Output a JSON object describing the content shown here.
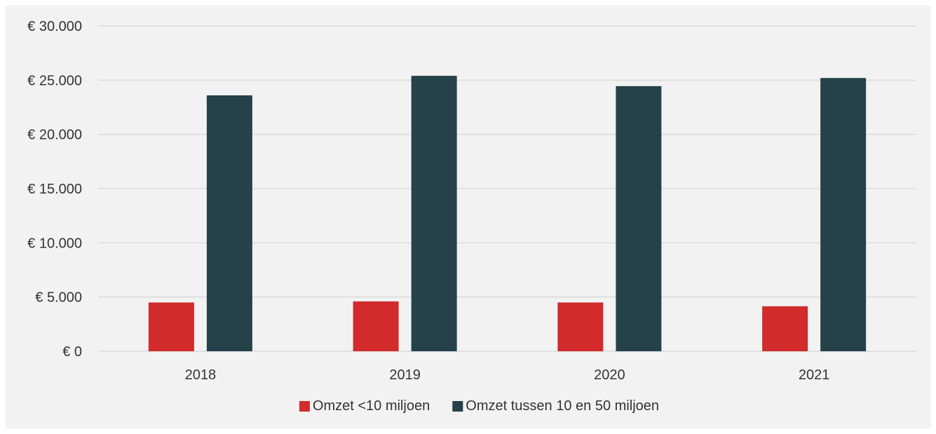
{
  "chart_data": {
    "type": "bar",
    "title": "",
    "xlabel": "",
    "ylabel": "",
    "categories": [
      "2018",
      "2019",
      "2020",
      "2021"
    ],
    "series": [
      {
        "name": "Omzet <10 miljoen",
        "color": "#d12b2b",
        "values": [
          4500,
          4600,
          4500,
          4150
        ]
      },
      {
        "name": "Omzet tussen 10 en 50 miljoen",
        "color": "#25424a",
        "values": [
          23600,
          25400,
          24450,
          25200
        ]
      }
    ],
    "ylim": [
      0,
      30000
    ],
    "yticks": [
      0,
      5000,
      10000,
      15000,
      20000,
      25000,
      30000
    ],
    "ytick_labels": [
      "€ 0",
      "€ 5.000",
      "€ 10.000",
      "€ 15.000",
      "€ 20.000",
      "€ 25.000",
      "€ 30.000"
    ],
    "grid": true,
    "legend_position": "bottom",
    "background_color": "#f2f2f2",
    "gridline_color": "#d9d9d9",
    "text_color": "#333333"
  }
}
